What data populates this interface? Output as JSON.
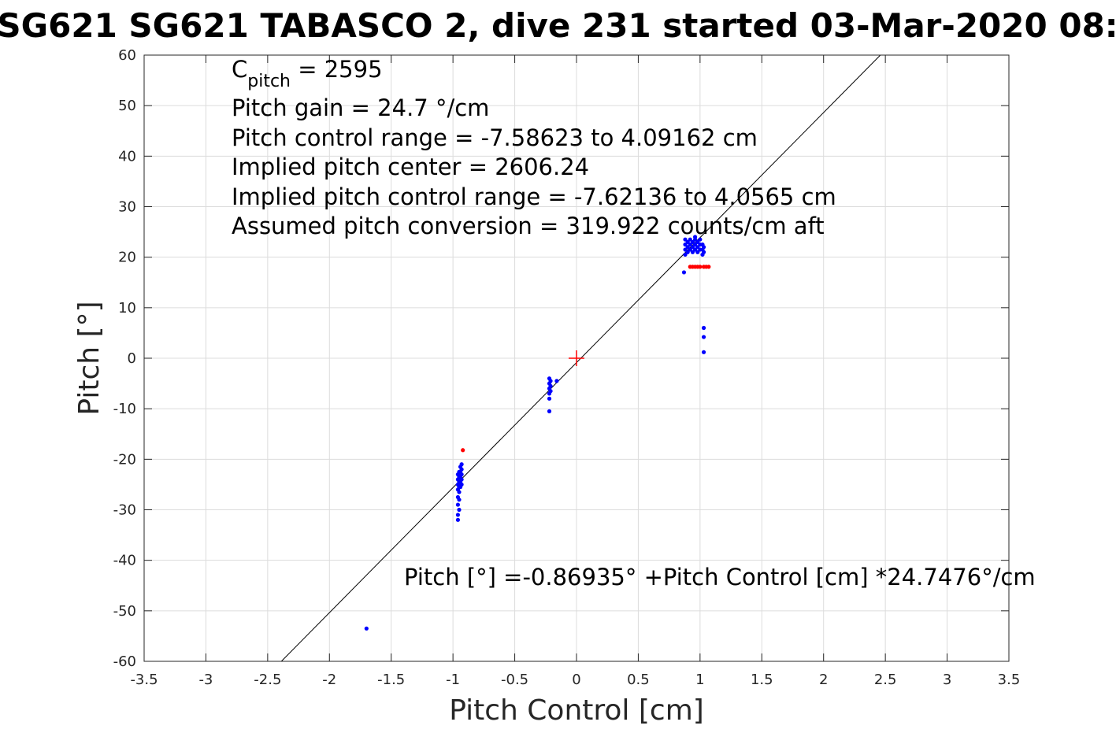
{
  "chart_data": {
    "type": "scatter",
    "title": "SG621 SG621 TABASCO 2, dive 231 started 03-Mar-2020 08:",
    "xlabel": "Pitch Control [cm]",
    "ylabel": "Pitch [°]",
    "xlim": [
      -3.5,
      3.5
    ],
    "ylim": [
      -60,
      60
    ],
    "grid": true,
    "xticks": [
      -3.5,
      -3,
      -2.5,
      -2,
      -1.5,
      -1,
      -0.5,
      0,
      0.5,
      1,
      1.5,
      2,
      2.5,
      3,
      3.5
    ],
    "yticks": [
      -60,
      -50,
      -40,
      -30,
      -20,
      -10,
      0,
      10,
      20,
      30,
      40,
      50,
      60
    ],
    "xtick_labels": [
      "-3.5",
      "-3",
      "-2.5",
      "-2",
      "-1.5",
      "-1",
      "-0.5",
      "0",
      "0.5",
      "1",
      "1.5",
      "2",
      "2.5",
      "3",
      "3.5"
    ],
    "ytick_labels": [
      "-60",
      "-50",
      "-40",
      "-30",
      "-20",
      "-10",
      "0",
      "10",
      "20",
      "30",
      "40",
      "50",
      "60"
    ],
    "fit_line": {
      "intercept": -0.86935,
      "slope": 24.7476,
      "color": "#000000"
    },
    "center_marker": {
      "x": 0,
      "y": 0,
      "color": "#ff0000",
      "symbol": "+"
    },
    "series": [
      {
        "color": "#0000ff",
        "points": [
          [
            -1.7,
            -53.5
          ],
          [
            -0.96,
            -23.0
          ],
          [
            -0.96,
            -24.0
          ],
          [
            -0.96,
            -25.0
          ],
          [
            -0.96,
            -26.0
          ],
          [
            -0.96,
            -27.5
          ],
          [
            -0.96,
            -29.0
          ],
          [
            -0.96,
            -31.0
          ],
          [
            -0.96,
            -32.0
          ],
          [
            -0.95,
            -22.5
          ],
          [
            -0.95,
            -23.5
          ],
          [
            -0.95,
            -24.5
          ],
          [
            -0.95,
            -25.5
          ],
          [
            -0.95,
            -26.5
          ],
          [
            -0.95,
            -28.0
          ],
          [
            -0.95,
            -30.0
          ],
          [
            -0.94,
            -21.5
          ],
          [
            -0.94,
            -22.5
          ],
          [
            -0.94,
            -23.5
          ],
          [
            -0.94,
            -24.5
          ],
          [
            -0.94,
            -25.5
          ],
          [
            -0.93,
            -21.0
          ],
          [
            -0.93,
            -22.0
          ],
          [
            -0.93,
            -23.0
          ],
          [
            -0.93,
            -24.0
          ],
          [
            -0.93,
            -25.0
          ],
          [
            -0.22,
            -4.0
          ],
          [
            -0.22,
            -5.0
          ],
          [
            -0.22,
            -6.0
          ],
          [
            -0.22,
            -7.0
          ],
          [
            -0.22,
            -8.0
          ],
          [
            -0.22,
            -10.5
          ],
          [
            -0.21,
            -4.5
          ],
          [
            -0.21,
            -5.5
          ],
          [
            -0.21,
            -6.5
          ],
          [
            -0.16,
            -4.5
          ],
          [
            0.87,
            17.0
          ],
          [
            0.88,
            20.5
          ],
          [
            0.88,
            21.5
          ],
          [
            0.88,
            22.5
          ],
          [
            0.88,
            23.5
          ],
          [
            0.9,
            21.0
          ],
          [
            0.9,
            22.0
          ],
          [
            0.9,
            23.0
          ],
          [
            0.92,
            21.5
          ],
          [
            0.92,
            22.5
          ],
          [
            0.92,
            23.5
          ],
          [
            0.94,
            21.0
          ],
          [
            0.94,
            22.0
          ],
          [
            0.94,
            23.0
          ],
          [
            0.96,
            21.5
          ],
          [
            0.96,
            22.5
          ],
          [
            0.96,
            23.5
          ],
          [
            0.96,
            24.0
          ],
          [
            0.98,
            21.0
          ],
          [
            0.98,
            22.0
          ],
          [
            0.98,
            23.0
          ],
          [
            1.0,
            21.5
          ],
          [
            1.0,
            22.5
          ],
          [
            1.0,
            23.5
          ],
          [
            1.02,
            20.5
          ],
          [
            1.02,
            21.5
          ],
          [
            1.02,
            22.5
          ],
          [
            1.03,
            21.0
          ],
          [
            1.03,
            22.0
          ],
          [
            1.03,
            6.0
          ],
          [
            1.03,
            4.2
          ],
          [
            1.03,
            1.2
          ]
        ]
      },
      {
        "color": "#ff0000",
        "points": [
          [
            -0.92,
            -18.2
          ],
          [
            0.92,
            18.1
          ],
          [
            0.94,
            18.1
          ],
          [
            0.96,
            18.1
          ],
          [
            0.98,
            18.1
          ],
          [
            1.0,
            18.1
          ],
          [
            1.03,
            18.1
          ],
          [
            1.05,
            18.1
          ],
          [
            1.07,
            18.1
          ]
        ]
      }
    ],
    "annotations": {
      "cpitch_main": "C",
      "cpitch_sub": "pitch",
      "cpitch_value": " = 2595",
      "line2": "Pitch gain = 24.7 °/cm",
      "line3": "Pitch control range = -7.58623 to 4.09162 cm",
      "line4": "Implied pitch center = 2606.24",
      "line5": "Implied pitch control range = -7.62136 to 4.0565 cm",
      "line6": "Assumed pitch conversion = 319.922 counts/cm aft",
      "fit_equation": "Pitch [°] =-0.86935°  +Pitch Control [cm] *24.7476°/cm"
    }
  }
}
